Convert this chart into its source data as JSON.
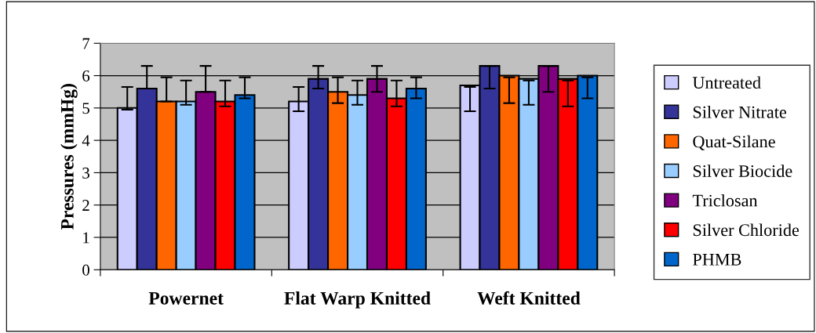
{
  "chart_data": {
    "type": "bar",
    "ylabel": "Pressures (mmHg)",
    "categories": [
      "Powernet",
      "Flat Warp Knitted",
      "Weft Knitted"
    ],
    "series": [
      {
        "name": "Untreated",
        "color": "#ccccff",
        "values": [
          5.0,
          5.2,
          5.7
        ],
        "errors": [
          [
            4.95,
            5.65
          ],
          [
            4.9,
            5.65
          ],
          [
            4.9,
            5.65
          ]
        ]
      },
      {
        "name": "Silver Nitrate",
        "color": "#333399",
        "values": [
          5.6,
          5.9,
          6.3
        ],
        "errors": [
          [
            5.6,
            6.3
          ],
          [
            5.6,
            6.3
          ],
          [
            5.6,
            6.3
          ]
        ]
      },
      {
        "name": "Quat-Silane",
        "color": "#ff6600",
        "values": [
          5.2,
          5.5,
          6.0
        ],
        "errors": [
          [
            5.2,
            5.95
          ],
          [
            5.15,
            5.95
          ],
          [
            5.15,
            5.95
          ]
        ]
      },
      {
        "name": "Silver Biocide",
        "color": "#99ccff",
        "values": [
          5.2,
          5.4,
          5.9
        ],
        "errors": [
          [
            5.1,
            5.85
          ],
          [
            5.1,
            5.85
          ],
          [
            5.1,
            5.85
          ]
        ]
      },
      {
        "name": "Triclosan",
        "color": "#800080",
        "values": [
          5.5,
          5.9,
          6.3
        ],
        "errors": [
          [
            5.5,
            6.3
          ],
          [
            5.5,
            6.3
          ],
          [
            5.5,
            6.3
          ]
        ]
      },
      {
        "name": "Silver Chloride",
        "color": "#ff0000",
        "values": [
          5.2,
          5.3,
          5.9
        ],
        "errors": [
          [
            5.05,
            5.85
          ],
          [
            5.05,
            5.85
          ],
          [
            5.05,
            5.85
          ]
        ]
      },
      {
        "name": "PHMB",
        "color": "#0066cc",
        "values": [
          5.4,
          5.6,
          6.0
        ],
        "errors": [
          [
            5.3,
            5.95
          ],
          [
            5.3,
            5.95
          ],
          [
            5.3,
            5.95
          ]
        ]
      }
    ],
    "ylim": [
      0,
      7
    ],
    "yticks": [
      0,
      1,
      2,
      3,
      4,
      5,
      6,
      7
    ],
    "grid": "y",
    "legend": "right"
  }
}
